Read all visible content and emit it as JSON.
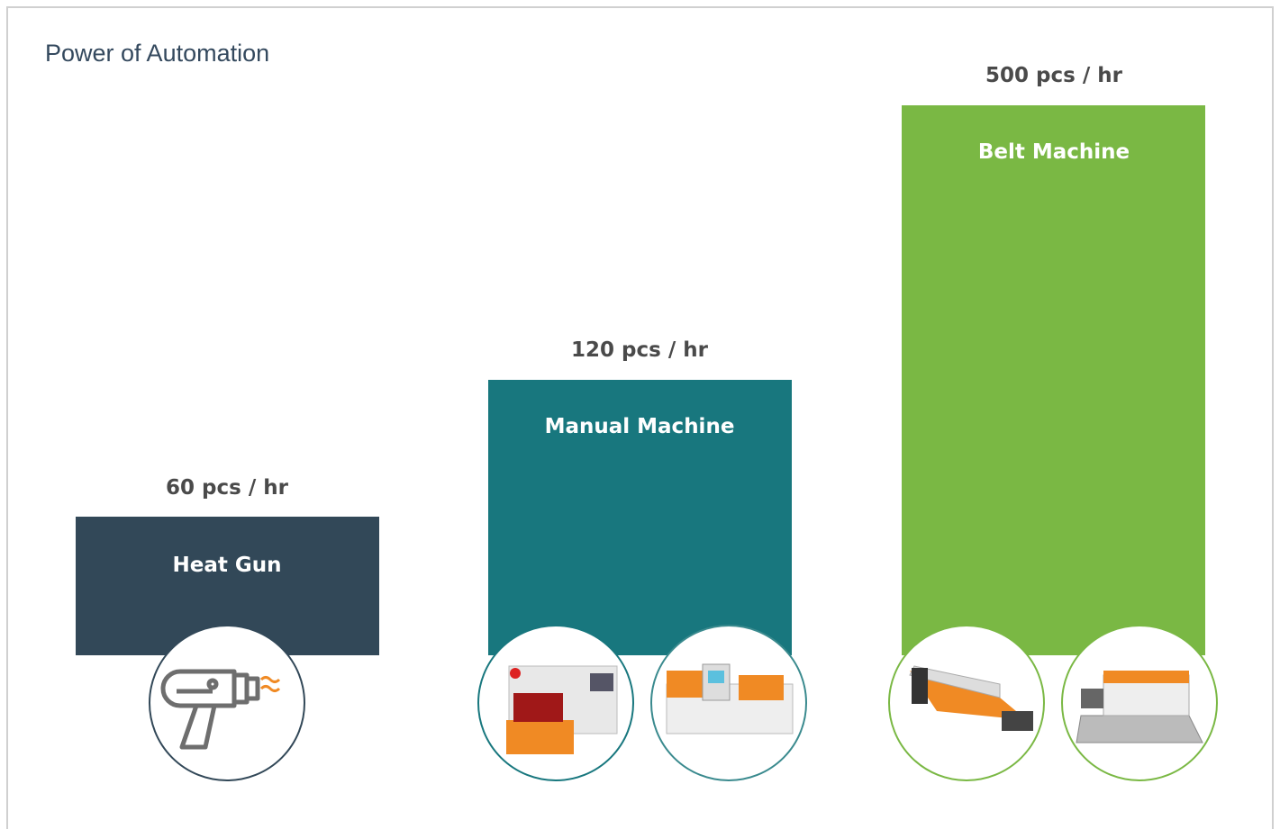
{
  "title": "Power of Automation",
  "items": [
    {
      "name": "Heat Gun",
      "rate": "60 pcs / hr"
    },
    {
      "name": "Manual Machine",
      "rate": "120 pcs / hr"
    },
    {
      "name": "Belt Machine",
      "rate": "500 pcs / hr"
    }
  ]
}
